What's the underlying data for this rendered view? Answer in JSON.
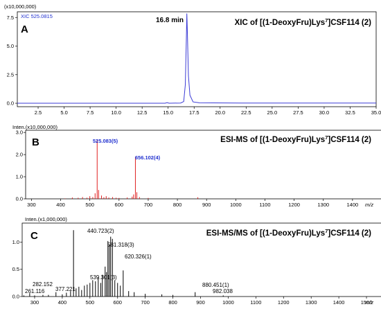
{
  "chart_data": [
    {
      "type": "line",
      "panel_letter": "A",
      "title_parts": [
        "XIC of [(1-DeoxyFru)Lys",
        "7",
        "]CSF114 (2)"
      ],
      "trace_label": "XIC 525.0815",
      "y_multiplier": "(x10,000,000)",
      "annotation": "16.8 min",
      "xlim": [
        0.5,
        35.0
      ],
      "ylim": [
        -0.3,
        8.0
      ],
      "x_ticks": [
        "2.5",
        "5.0",
        "7.5",
        "10.0",
        "12.5",
        "15.0",
        "17.5",
        "20.0",
        "22.5",
        "25.0",
        "27.5",
        "30.0",
        "32.5",
        "35.0"
      ],
      "y_ticks": [
        "0.0",
        "2.5",
        "5.0",
        "7.5"
      ],
      "x": [
        0.5,
        5.0,
        10.0,
        14.7,
        14.9,
        15.1,
        16.2,
        16.5,
        16.65,
        16.75,
        16.8,
        16.85,
        16.95,
        17.1,
        17.4,
        18.0,
        22.0,
        27.0,
        32.0,
        35.0
      ],
      "y": [
        0.0,
        0.0,
        0.0,
        0.0,
        0.06,
        0.0,
        0.02,
        0.15,
        1.6,
        5.6,
        7.85,
        6.2,
        2.4,
        0.7,
        0.12,
        0.04,
        0.02,
        0.02,
        0.02,
        0.02
      ],
      "color": "#3b3bd6"
    },
    {
      "type": "bar",
      "panel_letter": "B",
      "title_parts": [
        "ESI-MS of [(1-DeoxyFru)Lys",
        "7",
        "]CSF114 (2)"
      ],
      "ylabel": "Inten.(x10,000,000)",
      "xlabel": "m/z",
      "xlim": [
        280,
        1500
      ],
      "ylim": [
        0,
        3.1
      ],
      "x_ticks": [
        "300",
        "400",
        "500",
        "600",
        "700",
        "800",
        "900",
        "1000",
        "1100",
        "1200",
        "1300",
        "1400"
      ],
      "y_ticks": [
        "0.0",
        "1.0",
        "2.0",
        "3.0"
      ],
      "peak_labels": [
        "525.083(5)",
        "656.102(4)"
      ],
      "x": [
        415,
        440,
        460,
        475,
        490,
        500,
        510,
        518,
        525.08,
        530,
        540,
        548,
        556,
        565,
        578,
        590,
        600,
        628,
        645,
        650,
        656.1,
        661,
        670,
        700,
        870
      ],
      "values": [
        0.02,
        0.06,
        0.05,
        0.08,
        0.05,
        0.12,
        0.08,
        0.25,
        2.65,
        0.4,
        0.15,
        0.07,
        0.12,
        0.06,
        0.08,
        0.05,
        0.04,
        0.06,
        0.1,
        0.2,
        1.9,
        0.3,
        0.08,
        0.04,
        0.07
      ],
      "color": "#e02020"
    },
    {
      "type": "bar",
      "panel_letter": "C",
      "title_parts": [
        "ESI-MS/MS of [(1-DeoxyFru)Lys",
        "7",
        "]CSF114 (2)"
      ],
      "ylabel": "Inten.(x1,000,000)",
      "xlabel": "m/z",
      "xlim": [
        255,
        1555
      ],
      "ylim": [
        0,
        1.35
      ],
      "x_ticks": [
        "300",
        "400",
        "500",
        "600",
        "700",
        "800",
        "900",
        "1000",
        "1100",
        "1200",
        "1300",
        "1400",
        "1500"
      ],
      "y_ticks": [
        "0.0",
        "0.5",
        "1.0"
      ],
      "peak_labels": [
        "440.723(2)",
        "581.318(3)",
        "620.326(1)",
        "539.301(3)",
        "282.152",
        "377.221",
        "261.116",
        "880.451(1)",
        "982.038"
      ],
      "x": [
        261.1,
        282.2,
        300,
        330,
        350,
        377.2,
        400,
        415,
        430,
        440.7,
        450,
        460,
        470,
        480,
        490,
        500,
        510,
        520,
        530,
        539.3,
        545,
        555,
        560,
        565,
        570,
        575,
        581.3,
        590,
        600,
        610,
        620.3,
        640,
        660,
        700,
        760,
        800,
        880.5,
        982.0
      ],
      "values": [
        0.02,
        0.06,
        0.02,
        0.03,
        0.03,
        0.08,
        0.04,
        0.07,
        0.1,
        1.22,
        0.15,
        0.18,
        0.12,
        0.2,
        0.22,
        0.25,
        0.3,
        0.28,
        0.35,
        0.25,
        0.4,
        0.55,
        0.45,
        1.02,
        0.95,
        1.1,
        1.06,
        0.3,
        0.25,
        0.2,
        0.48,
        0.1,
        0.08,
        0.05,
        0.04,
        0.03,
        0.08,
        0.02
      ],
      "color": "#000000"
    }
  ]
}
